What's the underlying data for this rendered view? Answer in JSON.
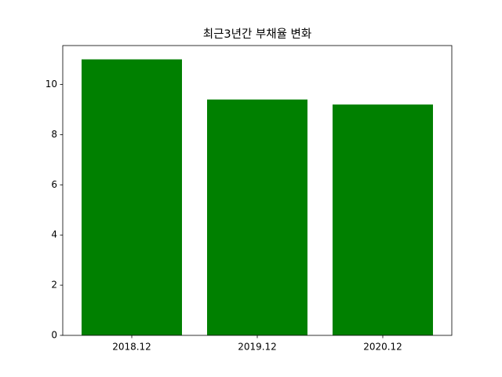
{
  "chart_data": {
    "type": "bar",
    "title": "최근3년간 부채율 변화",
    "categories": [
      "2018.12",
      "2019.12",
      "2020.12"
    ],
    "values": [
      11.0,
      9.4,
      9.2
    ],
    "color": "#008000",
    "ylim": [
      0,
      11.55
    ],
    "yticks": [
      0,
      2,
      4,
      6,
      8,
      10
    ]
  }
}
